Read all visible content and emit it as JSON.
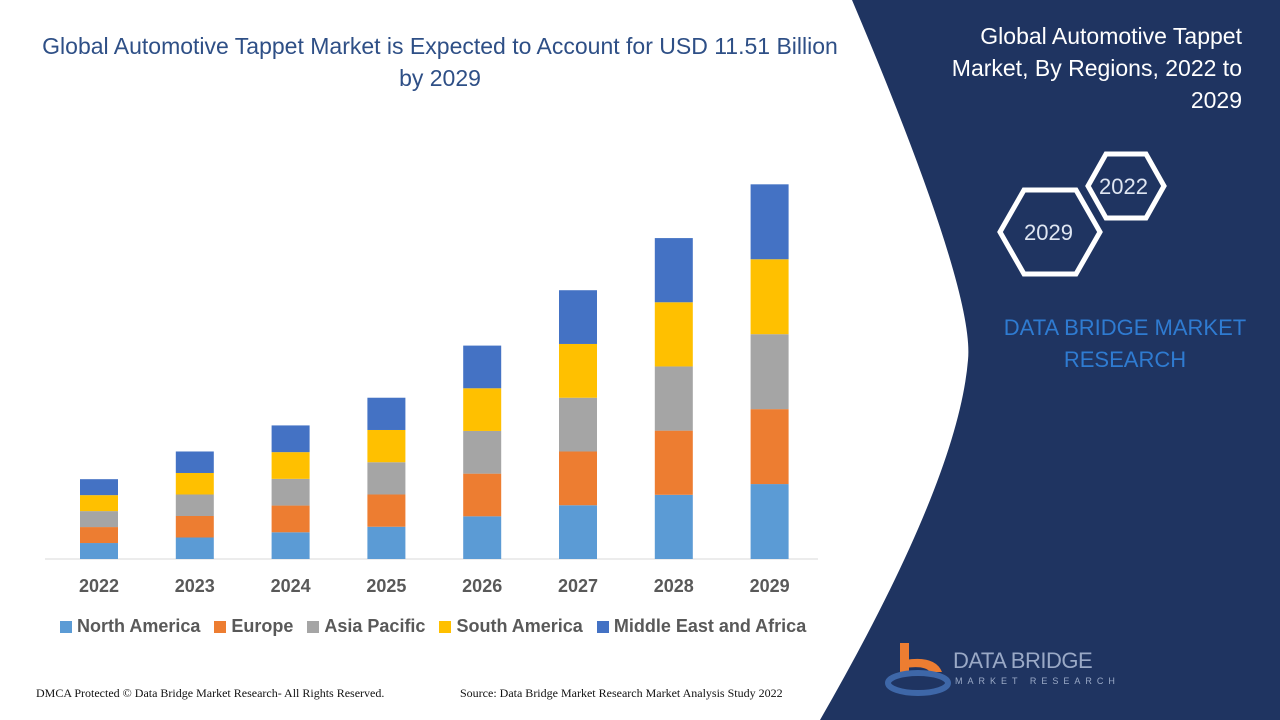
{
  "title": "Global Automotive Tappet Market is Expected to Account for USD 11.51 Billion by 2029",
  "side_panel": {
    "title": "Global Automotive Tappet Market, By Regions, 2022 to 2029",
    "hex_labels": [
      "2022",
      "2029"
    ],
    "brand": "DATA BRIDGE MARKET RESEARCH",
    "logo_text": "DATA BRIDGE",
    "logo_sub": "MARKET RESEARCH",
    "color": "#1f3461"
  },
  "footer": {
    "left": "DMCA Protected © Data Bridge Market Research- All Rights Reserved.",
    "right": "Source: Data Bridge Market Research Market Analysis Study 2022"
  },
  "chart_data": {
    "type": "bar",
    "stacked": true,
    "categories": [
      "2022",
      "2023",
      "2024",
      "2025",
      "2026",
      "2027",
      "2028",
      "2029"
    ],
    "series": [
      {
        "name": "North America",
        "color": "#5b9bd5",
        "values": [
          0.49,
          0.66,
          0.82,
          0.99,
          1.31,
          1.65,
          1.97,
          2.3
        ]
      },
      {
        "name": "Europe",
        "color": "#ed7d31",
        "values": [
          0.49,
          0.66,
          0.82,
          0.99,
          1.31,
          1.65,
          1.97,
          2.3
        ]
      },
      {
        "name": "Asia Pacific",
        "color": "#a5a5a5",
        "values": [
          0.49,
          0.66,
          0.82,
          0.99,
          1.31,
          1.65,
          1.97,
          2.3
        ]
      },
      {
        "name": "South America",
        "color": "#ffc000",
        "values": [
          0.49,
          0.66,
          0.82,
          0.99,
          1.31,
          1.65,
          1.97,
          2.3
        ]
      },
      {
        "name": "Middle East and Africa",
        "color": "#4472c4",
        "values": [
          0.49,
          0.66,
          0.82,
          0.99,
          1.31,
          1.65,
          1.97,
          2.3
        ]
      }
    ],
    "ylim": [
      0,
      12
    ],
    "grid": false,
    "legend": "bottom",
    "yaxis_visible": false
  }
}
